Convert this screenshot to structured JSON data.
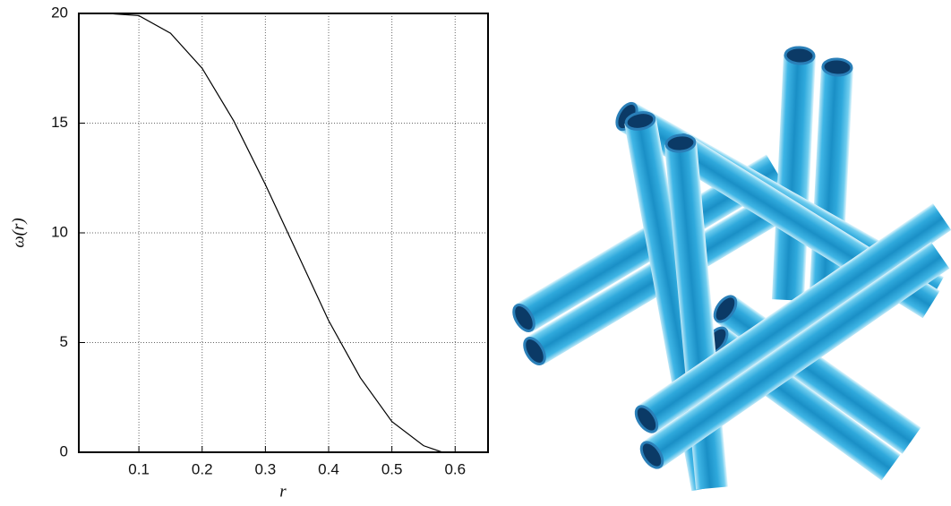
{
  "chart_data": {
    "type": "line",
    "xlabel": "r",
    "ylabel": "ω(r)",
    "x": [
      0.01,
      0.05,
      0.1,
      0.15,
      0.2,
      0.25,
      0.3,
      0.35,
      0.4,
      0.45,
      0.5,
      0.55,
      0.58,
      0.6
    ],
    "series": [
      {
        "name": "ω(r)",
        "color": "#000000",
        "values": [
          20,
          20,
          19.9,
          19.1,
          17.5,
          15.1,
          12.2,
          9.1,
          6.0,
          3.4,
          1.4,
          0.3,
          0,
          0
        ]
      }
    ],
    "xlim": [
      0.005,
      0.652
    ],
    "xticks": [
      0.1,
      0.2,
      0.3,
      0.4,
      0.5,
      0.6
    ],
    "ylim": [
      0,
      20
    ],
    "yticks": [
      0,
      5,
      10,
      15,
      20
    ],
    "grid": true
  }
}
